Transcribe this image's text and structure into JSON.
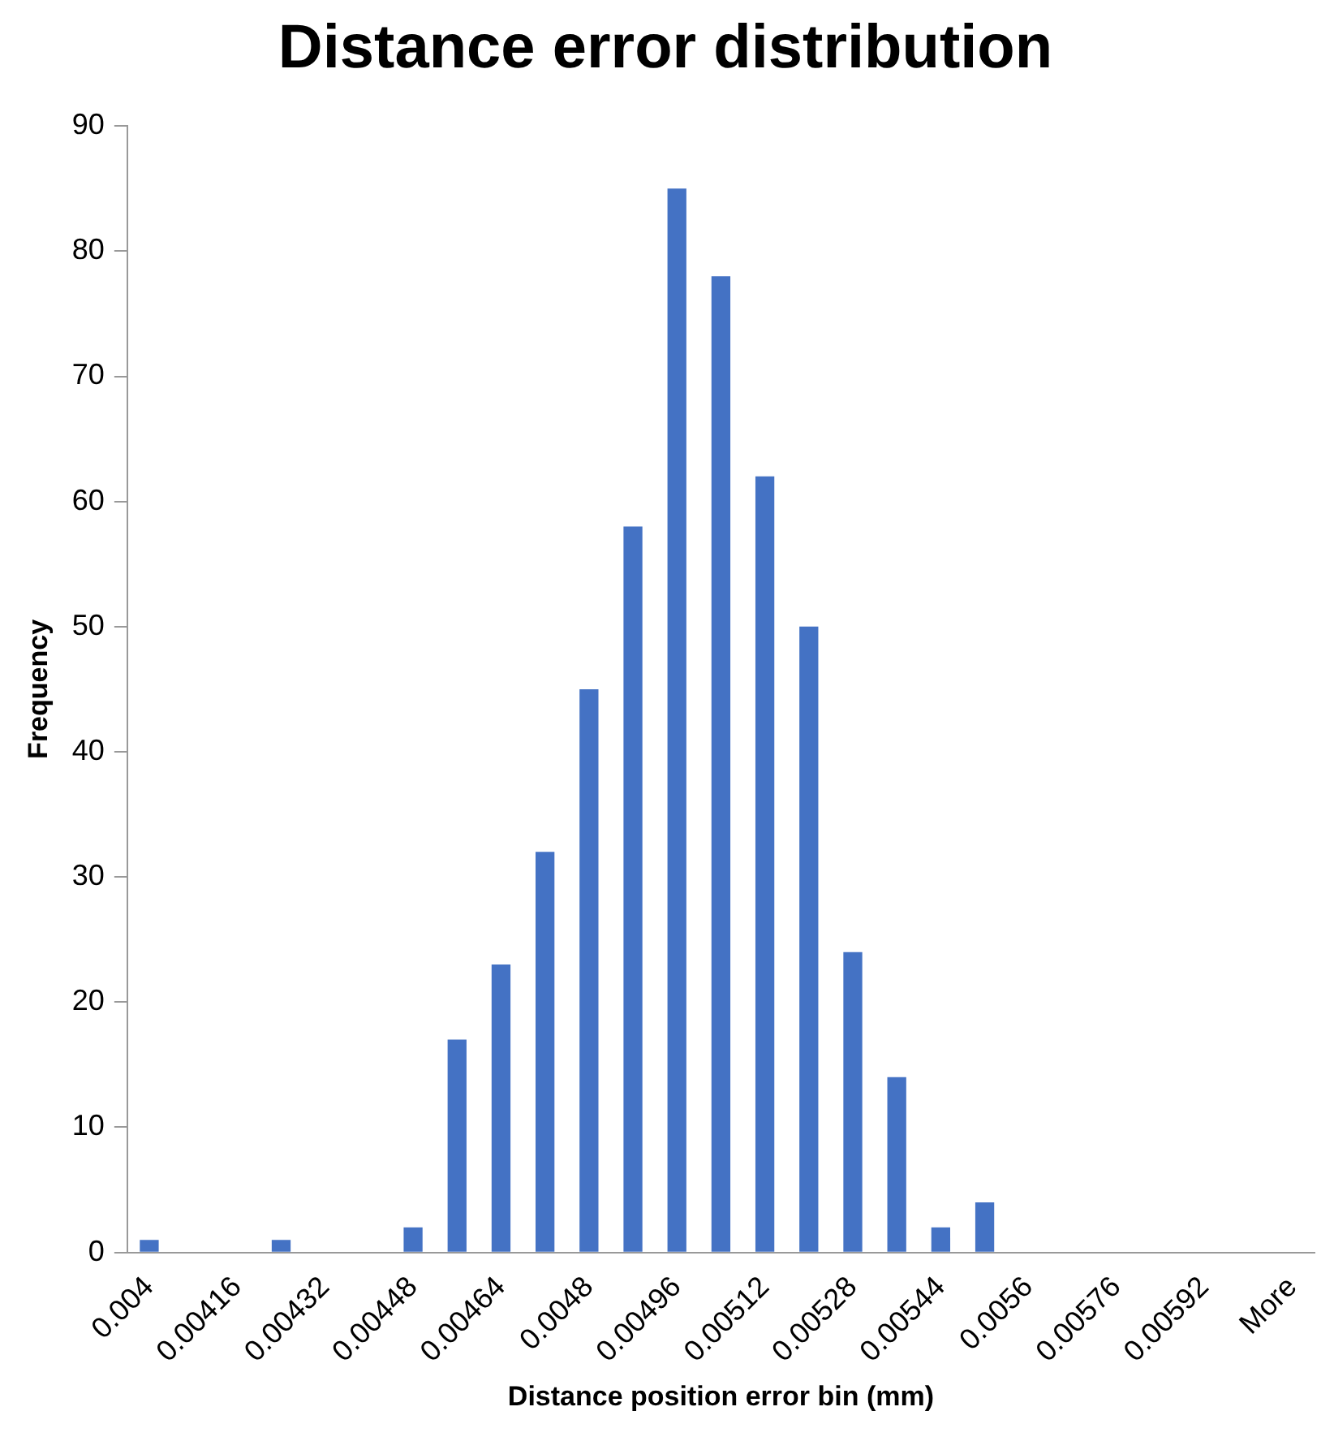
{
  "chart_data": {
    "type": "bar",
    "title": "Distance error distribution",
    "xlabel": "Distance position error bin (mm)",
    "ylabel": "Frequency",
    "categories": [
      "0.004",
      null,
      "0.00416",
      null,
      "0.00432",
      null,
      "0.00448",
      null,
      "0.00464",
      null,
      "0.0048",
      null,
      "0.00496",
      null,
      "0.00512",
      null,
      "0.00528",
      null,
      "0.00544",
      null,
      "0.0056",
      null,
      "0.00576",
      null,
      "0.00592",
      null,
      "More"
    ],
    "values": [
      1,
      0,
      0,
      1,
      0,
      0,
      2,
      17,
      23,
      32,
      45,
      58,
      85,
      78,
      62,
      50,
      24,
      14,
      2,
      4,
      0,
      0,
      0,
      0,
      0,
      0,
      0
    ],
    "color": "#4472c4",
    "ylim": [
      0,
      90
    ],
    "yticks": [
      0,
      10,
      20,
      30,
      40,
      50,
      60,
      70,
      80,
      90
    ],
    "grid": false,
    "legend": false
  }
}
